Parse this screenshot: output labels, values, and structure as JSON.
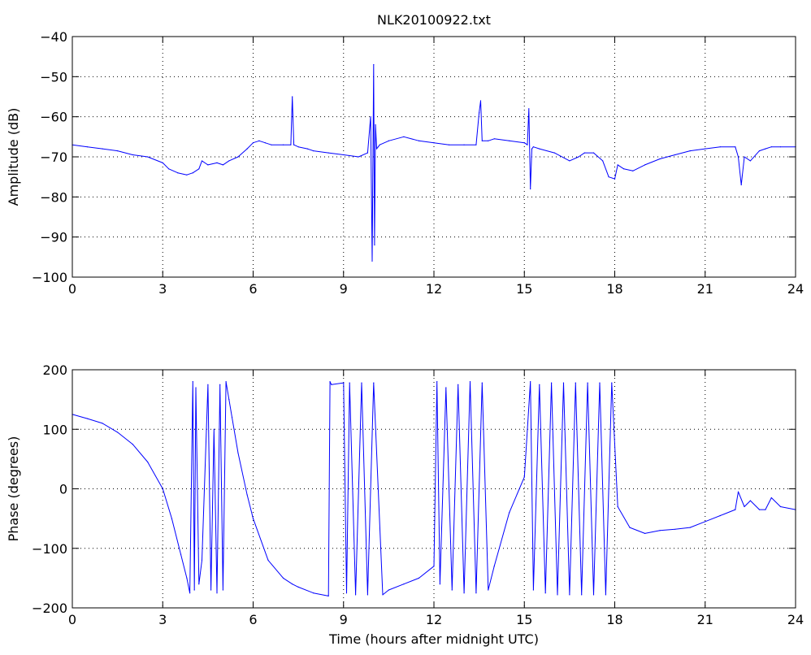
{
  "figure": {
    "title": "NLK20100922.txt"
  },
  "chart_data": [
    {
      "type": "line",
      "title": "NLK20100922.txt",
      "xlabel": "",
      "ylabel": "Amplitude (dB)",
      "xlim": [
        0,
        24
      ],
      "ylim": [
        -100,
        -40
      ],
      "xticks": [
        0,
        3,
        6,
        9,
        12,
        15,
        18,
        21,
        24
      ],
      "yticks": [
        -100,
        -90,
        -80,
        -70,
        -60,
        -50,
        -40
      ],
      "grid": true,
      "color": "#0000ff",
      "series": [
        {
          "x": [
            0,
            0.5,
            1,
            1.5,
            2,
            2.5,
            3,
            3.2,
            3.5,
            3.8,
            4.0,
            4.2,
            4.3,
            4.5,
            4.8,
            5.0,
            5.2,
            5.5,
            5.8,
            6.0,
            6.2,
            6.4,
            6.6,
            7.0,
            7.25,
            7.3,
            7.35,
            7.5,
            7.8,
            8.0,
            8.5,
            9.0,
            9.5,
            9.8,
            9.9,
            9.95,
            10.0,
            10.03,
            10.06,
            10.1,
            10.15,
            10.2,
            10.5,
            11.0,
            11.5,
            12.0,
            12.5,
            13.0,
            13.4,
            13.5,
            13.55,
            13.6,
            13.8,
            14.0,
            14.5,
            15.0,
            15.1,
            15.15,
            15.2,
            15.25,
            15.3,
            15.5,
            16.0,
            16.5,
            16.8,
            17.0,
            17.3,
            17.6,
            17.8,
            18.0,
            18.1,
            18.3,
            18.6,
            19.0,
            19.5,
            20.0,
            20.5,
            21.0,
            21.5,
            22.0,
            22.1,
            22.2,
            22.3,
            22.5,
            22.8,
            23.0,
            23.2,
            23.5,
            24.0
          ],
          "y": [
            -67,
            -67.5,
            -68,
            -68.5,
            -69.5,
            -70,
            -71.5,
            -73,
            -74,
            -74.5,
            -74,
            -73,
            -71,
            -72,
            -71.5,
            -72,
            -71,
            -70,
            -68,
            -66.5,
            -66,
            -66.5,
            -67,
            -67,
            -67,
            -55,
            -67,
            -67.5,
            -68,
            -68.5,
            -69,
            -69.5,
            -70,
            -69,
            -60,
            -96,
            -47,
            -92,
            -62,
            -68,
            -67.5,
            -67,
            -66,
            -65,
            -66,
            -66.5,
            -67,
            -67,
            -67,
            -59,
            -56,
            -66,
            -66,
            -65.5,
            -66,
            -66.5,
            -67,
            -58,
            -78,
            -68,
            -67.5,
            -68,
            -69,
            -71,
            -70,
            -69,
            -69,
            -71,
            -75,
            -75.5,
            -72,
            -73,
            -73.5,
            -72,
            -70.5,
            -69.5,
            -68.5,
            -68,
            -67.5,
            -67.5,
            -70,
            -77,
            -70,
            -71,
            -68.5,
            -68,
            -67.5,
            -67.5,
            -67.5
          ]
        }
      ]
    },
    {
      "type": "line",
      "title": "",
      "xlabel": "Time (hours after midnight UTC)",
      "ylabel": "Phase (degrees)",
      "xlim": [
        0,
        24
      ],
      "ylim": [
        -200,
        200
      ],
      "xticks": [
        0,
        3,
        6,
        9,
        12,
        15,
        18,
        21,
        24
      ],
      "yticks": [
        -200,
        -100,
        0,
        100,
        200
      ],
      "grid": true,
      "color": "#0000ff",
      "series": [
        {
          "x": [
            0,
            0.5,
            1.0,
            1.5,
            2.0,
            2.5,
            3.0,
            3.3,
            3.6,
            3.8,
            3.9,
            4.0,
            4.05,
            4.1,
            4.2,
            4.3,
            4.5,
            4.6,
            4.7,
            4.8,
            4.9,
            5.0,
            5.1,
            5.2,
            5.3,
            5.5,
            5.8,
            6.0,
            6.5,
            7.0,
            7.3,
            7.5,
            8.0,
            8.5,
            8.55,
            8.6,
            9.0,
            9.1,
            9.2,
            9.4,
            9.6,
            9.8,
            10.0,
            10.3,
            10.5,
            11.0,
            11.5,
            12.0,
            12.1,
            12.2,
            12.4,
            12.6,
            12.8,
            13.0,
            13.2,
            13.4,
            13.6,
            13.8,
            14.0,
            14.5,
            15.0,
            15.2,
            15.3,
            15.5,
            15.7,
            15.9,
            16.1,
            16.3,
            16.5,
            16.7,
            16.9,
            17.1,
            17.3,
            17.5,
            17.7,
            17.9,
            18.1,
            18.5,
            19.0,
            19.5,
            20.0,
            20.5,
            21.0,
            21.5,
            22.0,
            22.1,
            22.3,
            22.5,
            22.8,
            23.0,
            23.2,
            23.5,
            24.0
          ],
          "y": [
            125,
            118,
            110,
            95,
            75,
            45,
            0,
            -50,
            -110,
            -150,
            -175,
            180,
            -170,
            170,
            -160,
            -120,
            175,
            -170,
            100,
            -175,
            175,
            -170,
            180,
            150,
            120,
            60,
            -10,
            -50,
            -120,
            -150,
            -160,
            -165,
            -175,
            -180,
            180,
            175,
            178,
            -175,
            178,
            -178,
            178,
            -178,
            178,
            -178,
            -170,
            -160,
            -150,
            -130,
            180,
            -160,
            170,
            -170,
            175,
            -175,
            180,
            -175,
            178,
            -170,
            -130,
            -40,
            20,
            180,
            -170,
            175,
            -175,
            178,
            -178,
            178,
            -178,
            178,
            -178,
            178,
            -178,
            178,
            -178,
            178,
            -30,
            -65,
            -75,
            -70,
            -68,
            -65,
            -55,
            -45,
            -35,
            -5,
            -30,
            -20,
            -35,
            -35,
            -15,
            -30,
            -35
          ]
        }
      ]
    }
  ]
}
